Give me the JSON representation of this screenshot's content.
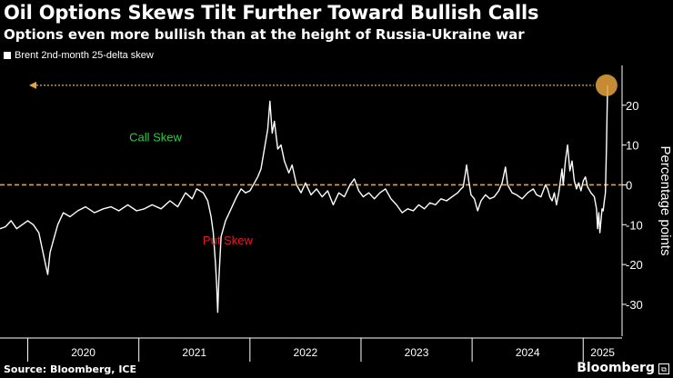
{
  "title": "Oil Options Skews Tilt Further Toward Bullish Calls",
  "subtitle": "Options even more bullish than at the height of Russia-Ukraine war",
  "source": "Source: Bloomberg, ICE",
  "brand": "Bloomberg",
  "brand_icon": "bloomberg-terminal-icon",
  "colors": {
    "background": "#000000",
    "line": "#ffffff",
    "zero_line": "#e8a33d",
    "call_label": "#2ecc40",
    "put_label": "#e31b23",
    "highlight_circle": "#e8a33d"
  },
  "chart_data": {
    "type": "line",
    "title": "Oil Options Skews Tilt Further Toward Bullish Calls",
    "subtitle": "Options even more bullish than at the height of Russia-Ukraine war",
    "ylabel": "Percentage points",
    "ylim": [
      -38,
      30
    ],
    "yticks": [
      -30,
      -20,
      -10,
      0,
      10,
      20
    ],
    "xlim": [
      2019.75,
      2025.35
    ],
    "xtick_labels": [
      "2020",
      "2021",
      "2022",
      "2023",
      "2024",
      "2025"
    ],
    "legend_position": "top-left",
    "grid": false,
    "annotations": [
      {
        "text": "Call Skew",
        "x": 2021.15,
        "y": 11,
        "color": "#2ecc40"
      },
      {
        "text": "Put Skew",
        "x": 2021.8,
        "y": -15,
        "color": "#e31b23"
      }
    ],
    "reference_line": {
      "y": 0,
      "style": "dashed"
    },
    "highlight": {
      "x": 2025.21,
      "y": 25
    },
    "series": [
      {
        "name": "Brent 2nd-month 25-delta skew",
        "points": [
          [
            2019.75,
            -11.0
          ],
          [
            2019.8,
            -10.5
          ],
          [
            2019.85,
            -9.0
          ],
          [
            2019.9,
            -11.0
          ],
          [
            2019.95,
            -10.0
          ],
          [
            2020.0,
            -9.0
          ],
          [
            2020.05,
            -10.0
          ],
          [
            2020.1,
            -12.0
          ],
          [
            2020.13,
            -16.0
          ],
          [
            2020.16,
            -20.0
          ],
          [
            2020.18,
            -22.5
          ],
          [
            2020.2,
            -17.0
          ],
          [
            2020.23,
            -14.0
          ],
          [
            2020.27,
            -10.0
          ],
          [
            2020.32,
            -7.0
          ],
          [
            2020.38,
            -8.0
          ],
          [
            2020.45,
            -6.5
          ],
          [
            2020.52,
            -5.5
          ],
          [
            2020.6,
            -7.0
          ],
          [
            2020.68,
            -6.0
          ],
          [
            2020.75,
            -5.5
          ],
          [
            2020.82,
            -6.5
          ],
          [
            2020.9,
            -5.0
          ],
          [
            2020.98,
            -6.5
          ],
          [
            2021.05,
            -6.0
          ],
          [
            2021.12,
            -5.0
          ],
          [
            2021.2,
            -6.0
          ],
          [
            2021.28,
            -4.0
          ],
          [
            2021.35,
            -5.5
          ],
          [
            2021.42,
            -2.0
          ],
          [
            2021.48,
            -3.5
          ],
          [
            2021.52,
            -1.0
          ],
          [
            2021.58,
            -2.0
          ],
          [
            2021.62,
            -4.0
          ],
          [
            2021.65,
            -8.0
          ],
          [
            2021.67,
            -12.0
          ],
          [
            2021.69,
            -20.0
          ],
          [
            2021.7,
            -25.0
          ],
          [
            2021.71,
            -32.0
          ],
          [
            2021.72,
            -24.0
          ],
          [
            2021.74,
            -13.0
          ],
          [
            2021.78,
            -9.0
          ],
          [
            2021.83,
            -6.0
          ],
          [
            2021.88,
            -3.0
          ],
          [
            2021.92,
            -1.0
          ],
          [
            2021.96,
            -2.0
          ],
          [
            2022.0,
            -1.5
          ],
          [
            2022.04,
            0.5
          ],
          [
            2022.07,
            2.0
          ],
          [
            2022.1,
            4.0
          ],
          [
            2022.13,
            9.0
          ],
          [
            2022.16,
            14.0
          ],
          [
            2022.18,
            21.0
          ],
          [
            2022.2,
            13.0
          ],
          [
            2022.22,
            16.0
          ],
          [
            2022.25,
            9.0
          ],
          [
            2022.28,
            10.0
          ],
          [
            2022.31,
            6.0
          ],
          [
            2022.35,
            3.0
          ],
          [
            2022.38,
            5.0
          ],
          [
            2022.42,
            0.0
          ],
          [
            2022.46,
            -2.0
          ],
          [
            2022.5,
            0.5
          ],
          [
            2022.55,
            -2.5
          ],
          [
            2022.6,
            -1.0
          ],
          [
            2022.65,
            -3.0
          ],
          [
            2022.7,
            -1.5
          ],
          [
            2022.75,
            -5.0
          ],
          [
            2022.8,
            -2.0
          ],
          [
            2022.85,
            -3.0
          ],
          [
            2022.9,
            0.0
          ],
          [
            2022.94,
            1.5
          ],
          [
            2022.98,
            -1.5
          ],
          [
            2023.02,
            -3.0
          ],
          [
            2023.07,
            -2.0
          ],
          [
            2023.12,
            -3.5
          ],
          [
            2023.17,
            -2.0
          ],
          [
            2023.22,
            -1.0
          ],
          [
            2023.27,
            -3.5
          ],
          [
            2023.32,
            -5.0
          ],
          [
            2023.37,
            -7.0
          ],
          [
            2023.42,
            -6.0
          ],
          [
            2023.47,
            -6.5
          ],
          [
            2023.52,
            -5.0
          ],
          [
            2023.57,
            -6.0
          ],
          [
            2023.62,
            -4.5
          ],
          [
            2023.67,
            -5.0
          ],
          [
            2023.72,
            -3.5
          ],
          [
            2023.77,
            -4.0
          ],
          [
            2023.82,
            -3.0
          ],
          [
            2023.87,
            -2.0
          ],
          [
            2023.9,
            -1.0
          ],
          [
            2023.92,
            -0.5
          ],
          [
            2023.94,
            3.0
          ],
          [
            2023.95,
            5.0
          ],
          [
            2023.97,
            1.0
          ],
          [
            2023.99,
            -2.5
          ],
          [
            2024.02,
            -3.5
          ],
          [
            2024.05,
            -6.5
          ],
          [
            2024.08,
            -4.0
          ],
          [
            2024.12,
            -2.5
          ],
          [
            2024.16,
            -3.5
          ],
          [
            2024.2,
            -3.0
          ],
          [
            2024.24,
            -1.5
          ],
          [
            2024.27,
            0.5
          ],
          [
            2024.3,
            4.5
          ],
          [
            2024.32,
            0.0
          ],
          [
            2024.36,
            -2.0
          ],
          [
            2024.4,
            -2.5
          ],
          [
            2024.45,
            -3.5
          ],
          [
            2024.5,
            -2.0
          ],
          [
            2024.55,
            -1.0
          ],
          [
            2024.58,
            -2.5
          ],
          [
            2024.62,
            -3.0
          ],
          [
            2024.66,
            0.0
          ],
          [
            2024.68,
            -1.0
          ],
          [
            2024.7,
            -3.0
          ],
          [
            2024.72,
            -4.0
          ],
          [
            2024.74,
            -2.0
          ],
          [
            2024.76,
            -5.0
          ],
          [
            2024.78,
            -2.0
          ],
          [
            2024.81,
            4.0
          ],
          [
            2024.82,
            0.0
          ],
          [
            2024.84,
            6.0
          ],
          [
            2024.86,
            10.0
          ],
          [
            2024.88,
            3.5
          ],
          [
            2024.9,
            6.0
          ],
          [
            2024.92,
            1.0
          ],
          [
            2024.94,
            -1.0
          ],
          [
            2024.96,
            0.5
          ],
          [
            2024.98,
            -1.5
          ],
          [
            2025.0,
            1.0
          ],
          [
            2025.02,
            2.0
          ],
          [
            2025.04,
            -0.5
          ],
          [
            2025.07,
            -2.0
          ],
          [
            2025.1,
            -3.0
          ],
          [
            2025.12,
            -6.0
          ],
          [
            2025.13,
            -11.0
          ],
          [
            2025.14,
            -7.0
          ],
          [
            2025.15,
            -12.0
          ],
          [
            2025.16,
            -9.0
          ],
          [
            2025.17,
            -6.0
          ],
          [
            2025.18,
            -6.5
          ],
          [
            2025.19,
            -4.0
          ],
          [
            2025.2,
            -2.0
          ],
          [
            2025.205,
            4.0
          ],
          [
            2025.21,
            10.0
          ],
          [
            2025.215,
            18.0
          ],
          [
            2025.22,
            25.0
          ]
        ]
      }
    ]
  }
}
